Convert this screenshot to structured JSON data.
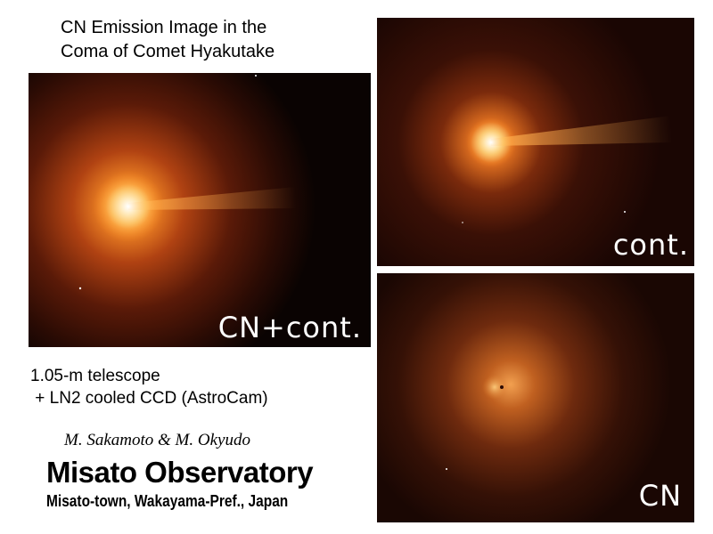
{
  "title": {
    "line1": "CN Emission Image in the",
    "line2": "Coma of Comet Hyakutake"
  },
  "panels": {
    "combined": {
      "label": "CN+cont."
    },
    "continuum": {
      "label": "cont."
    },
    "cn": {
      "label": "CN"
    }
  },
  "instrument": {
    "line1": "1.05-m telescope",
    "line2": " + LN2 cooled CCD (AstroCam)"
  },
  "authors": "M. Sakamoto & M. Okyudo",
  "observatory": {
    "name": "Misato Observatory",
    "location": "Misato-town, Wakayama-Pref., Japan"
  },
  "colors": {
    "background": "#ffffff",
    "sky": "#0a0302",
    "coma_core": "#fff6d0",
    "coma_mid": "#e8701a",
    "coma_outer": "#6a1c08"
  }
}
